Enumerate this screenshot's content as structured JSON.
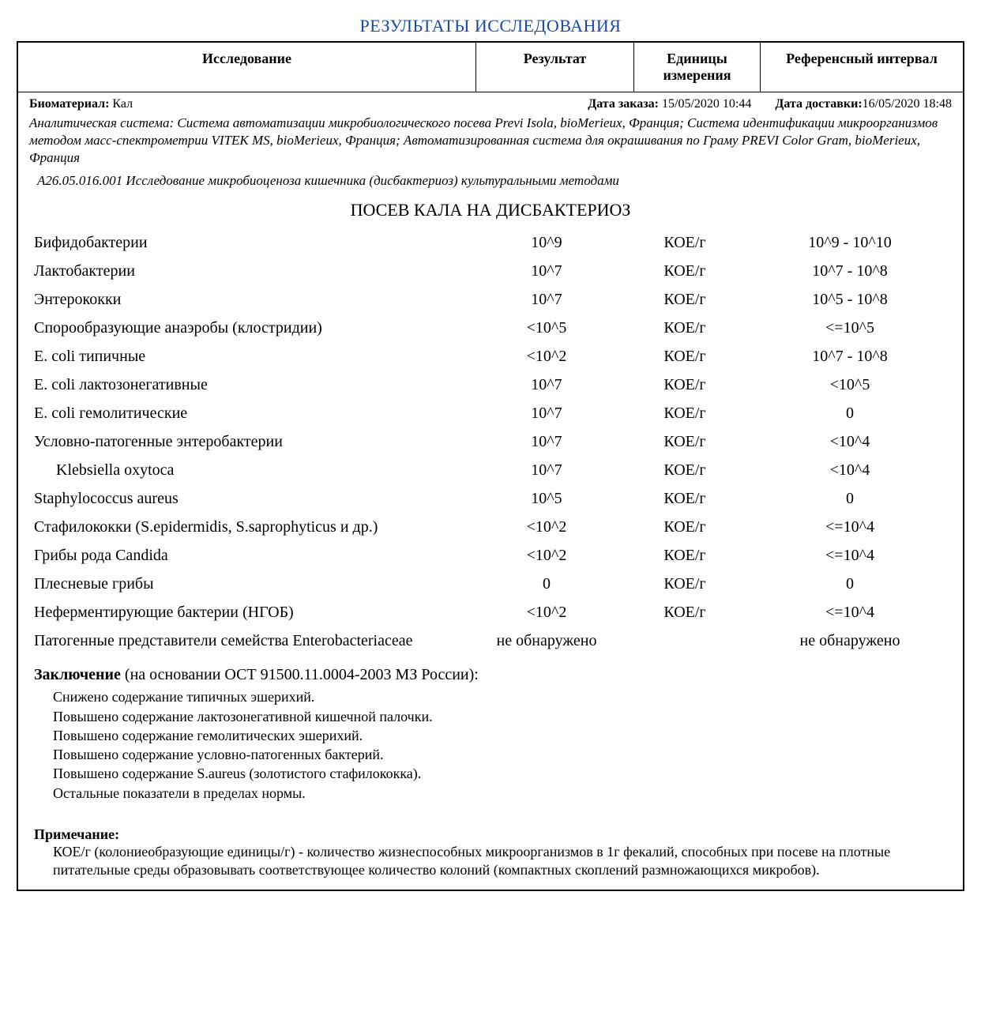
{
  "title": "РЕЗУЛЬТАТЫ ИССЛЕДОВАНИЯ",
  "header": {
    "study": "Исследование",
    "result": "Результат",
    "units": "Единицы измерения",
    "ref": "Референсный интервал"
  },
  "meta": {
    "biomat_label": "Биоматериал:",
    "biomat_value": "Кал",
    "order_label": "Дата заказа:",
    "order_value": "15/05/2020 10:44",
    "delivery_label": "Дата доставки:",
    "delivery_value": "16/05/2020 18:48"
  },
  "analytic_system": "Аналитическая система: Система автоматизации микробиологического посева Previ Isola, bioMerieux, Франция; Система идентификации микроорганизмов методом масс-спектрометрии VITEK MS, bioMerieux, Франция; Автоматизированная система для окрашивания по Граму PREVI Color Gram, bioMerieux, Франция",
  "code_line": "А26.05.016.001 Исследование микробиоценоза кишечника (дисбактериоз) культуральными методами",
  "section_title": "ПОСЕВ КАЛА НА ДИСБАКТЕРИОЗ",
  "rows": [
    {
      "name": "Бифидобактерии",
      "result": "10^9",
      "units": "КОЕ/г",
      "ref": "10^9 - 10^10",
      "indent": false
    },
    {
      "name": "Лактобактерии",
      "result": "10^7",
      "units": "КОЕ/г",
      "ref": "10^7 - 10^8",
      "indent": false
    },
    {
      "name": "Энтерококки",
      "result": "10^7",
      "units": "КОЕ/г",
      "ref": "10^5 - 10^8",
      "indent": false
    },
    {
      "name": "Спорообразующие анаэробы (клостридии)",
      "result": "<10^5",
      "units": "КОЕ/г",
      "ref": "<=10^5",
      "indent": false
    },
    {
      "name": "E. coli типичные",
      "result": "<10^2",
      "units": "КОЕ/г",
      "ref": "10^7 - 10^8",
      "indent": false
    },
    {
      "name": "E. coli лактозонегативные",
      "result": "10^7",
      "units": "КОЕ/г",
      "ref": "<10^5",
      "indent": false
    },
    {
      "name": "E. coli гемолитические",
      "result": "10^7",
      "units": "КОЕ/г",
      "ref": "0",
      "indent": false
    },
    {
      "name": "Условно-патогенные энтеробактерии",
      "result": "10^7",
      "units": "КОЕ/г",
      "ref": "<10^4",
      "indent": false
    },
    {
      "name": "Klebsiella oxytoca",
      "result": "10^7",
      "units": "КОЕ/г",
      "ref": "<10^4",
      "indent": true
    },
    {
      "name": "Staphylococcus aureus",
      "result": "10^5",
      "units": "КОЕ/г",
      "ref": "0",
      "indent": false
    },
    {
      "name": "Стафилококки (S.epidermidis, S.saprophyticus и др.)",
      "result": "<10^2",
      "units": "КОЕ/г",
      "ref": "<=10^4",
      "indent": false
    },
    {
      "name": "Грибы рода Candida",
      "result": "<10^2",
      "units": "КОЕ/г",
      "ref": "<=10^4",
      "indent": false
    },
    {
      "name": "Плесневые грибы",
      "result": "0",
      "units": "КОЕ/г",
      "ref": "0",
      "indent": false
    },
    {
      "name": "Неферментирующие бактерии (НГОБ)",
      "result": "<10^2",
      "units": "КОЕ/г",
      "ref": "<=10^4",
      "indent": false
    },
    {
      "name": "Патогенные представители семейства Enterobacteriaceae",
      "result": "не обнаружено",
      "units": "",
      "ref": "не обнаружено",
      "indent": false
    }
  ],
  "conclusion": {
    "label_bold": "Заключение",
    "label_rest": "  (на основании ОСТ 91500.11.0004-2003 МЗ России):",
    "lines": [
      "Снижено содержание типичных эшерихий.",
      "Повышено содержание лактозонегативной кишечной палочки.",
      "Повышено содержание гемолитических эшерихий.",
      "Повышено содержание условно-патогенных бактерий.",
      "Повышено содержание S.aureus (золотистого стафилококка).",
      "Остальные показатели в пределах нормы."
    ]
  },
  "note": {
    "title": "Примечание:",
    "text": "КОЕ/г (колониеобразующие единицы/г) - количество жизнеспособных микроорганизмов в 1г фекалий, способных при посеве на плотные питательные среды образовывать соответствующее количество колоний (компактных скоплений размножающихся микробов)."
  }
}
